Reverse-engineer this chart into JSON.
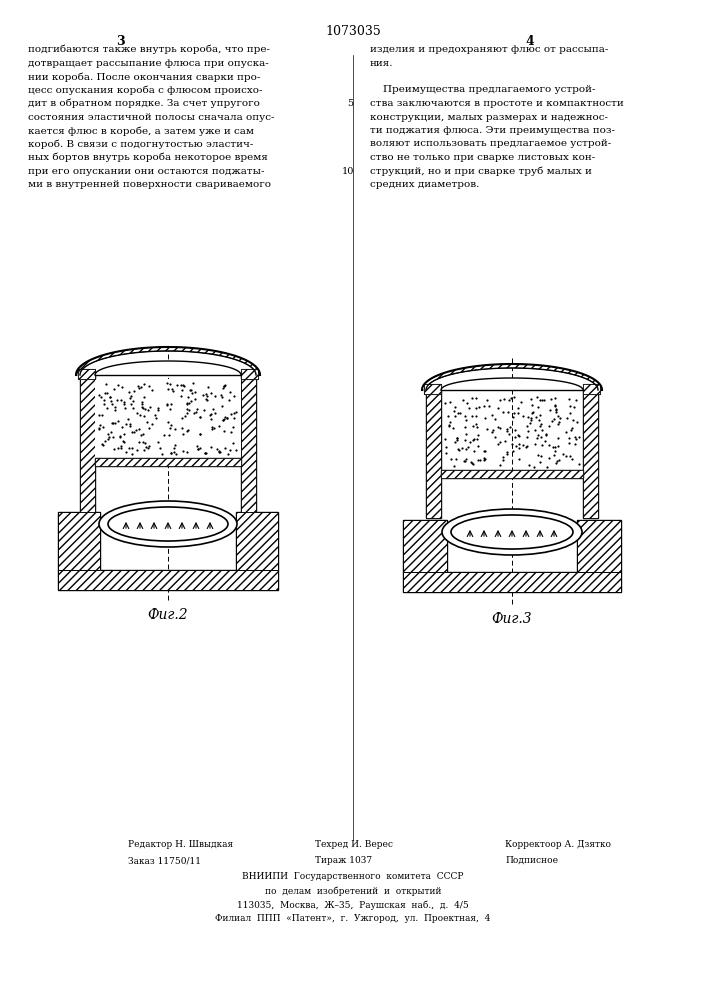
{
  "page_number_center": "1073035",
  "page_col_left": "3",
  "page_col_right": "4",
  "bg_color": "#ffffff",
  "text_color": "#000000",
  "fig2_label": "Фиг.2",
  "fig3_label": "Фиг.3",
  "col_left_text": [
    "подгибаются также внутрь короба, что пре-",
    "дотвращает рассыпание флюса при опуска-",
    "нии короба. После окончания сварки про-",
    "цесс опускания короба с флюсом происхо-",
    "дит в обратном порядке. За счет упругого",
    "состояния эластичной полосы сначала опус-",
    "кается флюс в коробе, а затем уже и сам",
    "короб. В связи с подогнутостью эластич-",
    "ных бортов внутрь короба некоторое время",
    "при его опускании они остаются поджаты-",
    "ми в внутренней поверхности свариваемого"
  ],
  "col_right_text_top": [
    "изделия и предохраняют флюс от рассыпа-",
    "ния."
  ],
  "col_right_text_para": [
    "    Преимущества предлагаемого устрой-",
    "ства заключаются в простоте и компактности",
    "конструкции, малых размерах и надежнос-",
    "ти поджатия флюса. Эти преимущества поз-",
    "воляют использовать предлагаемое устрой-",
    "ство не только при сварке листовых кон-",
    "струкций, но и при сварке труб малых и",
    "средних диаметров."
  ],
  "footer_line1_left": "Редактор Н. Швыдкая",
  "footer_line1_mid": "Техред И. Верес",
  "footer_line1_right": "Корректоор А. Дзятко",
  "footer_line2_left": "Заказ 11750/11",
  "footer_line2_mid": "Тираж 1037",
  "footer_line2_right": "Подписное",
  "footer_line3": "ВНИИПИ  Государственного  комитета  СССР",
  "footer_line4": "по  делам  изобретений  и  открытий",
  "footer_line5": "113035,  Москва,  Ж–35,  Раушская  наб.,  д.  4/5",
  "footer_line6": "Филиал  ППП  «Патент»,  г.  Ужгород,  ул.  Проектная,  4"
}
